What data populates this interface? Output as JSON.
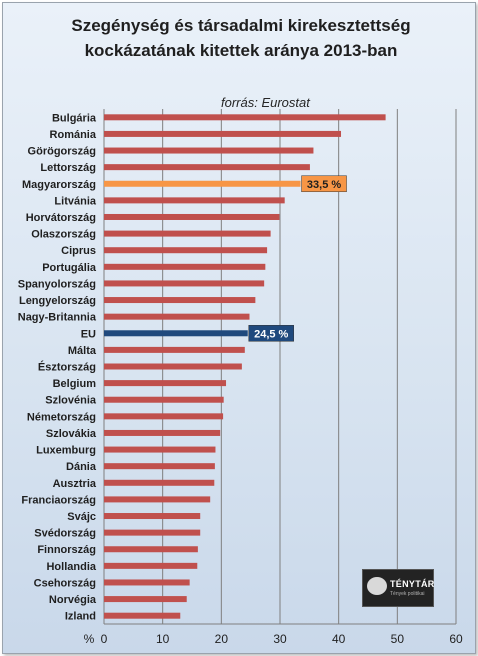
{
  "title_lines": [
    "Szegénység  és társadalmi kirekesztettség",
    "kockázatának kitettek aránya 2013-ban"
  ],
  "source": "forrás: Eurostat",
  "logo": {
    "name": "TÉNYTÁR",
    "tagline": "Tények politikai"
  },
  "colors": {
    "bar": "#c0504d",
    "hungary": "#f79646",
    "eu": "#1f497d",
    "eu_label_text": "#ffffff",
    "hungary_label_text": "#1f1f1f",
    "grid": "#7f7f7f",
    "text": "#1f1f1f"
  },
  "chart_data": {
    "type": "bar",
    "orientation": "horizontal",
    "title": "Szegénység  és társadalmi kirekesztettség kockázatának kitettek aránya 2013-ban",
    "source": "forrás: Eurostat",
    "xlabel": "%",
    "xlim": [
      0,
      60
    ],
    "xticks": [
      0,
      10,
      20,
      30,
      40,
      50,
      60
    ],
    "grid": "vertical",
    "categories": [
      "Bulgária",
      "Románia",
      "Görögország",
      "Lettország",
      "Magyarország",
      "Litvánia",
      "Horvátország",
      "Olaszország",
      "Ciprus",
      "Portugália",
      "Spanyolország",
      "Lengyelország",
      "Nagy-Britannia",
      "EU",
      "Málta",
      "Észtország",
      "Belgium",
      "Szlovénia",
      "Németország",
      "Szlovákia",
      "Luxemburg",
      "Dánia",
      "Ausztria",
      "Franciaország",
      "Svájc",
      "Svédország",
      "Finnország",
      "Hollandia",
      "Csehország",
      "Norvégia",
      "Izland"
    ],
    "values": [
      48.0,
      40.4,
      35.7,
      35.1,
      33.5,
      30.8,
      29.9,
      28.4,
      27.8,
      27.5,
      27.3,
      25.8,
      24.8,
      24.5,
      24.0,
      23.5,
      20.8,
      20.4,
      20.3,
      19.8,
      19.0,
      18.9,
      18.8,
      18.1,
      16.4,
      16.4,
      16.0,
      15.9,
      14.6,
      14.1,
      13.0
    ],
    "highlights": [
      {
        "category": "Magyarország",
        "label": "33,5 %",
        "color_key": "hungary"
      },
      {
        "category": "EU",
        "label": "24,5 %",
        "color_key": "eu"
      }
    ]
  }
}
